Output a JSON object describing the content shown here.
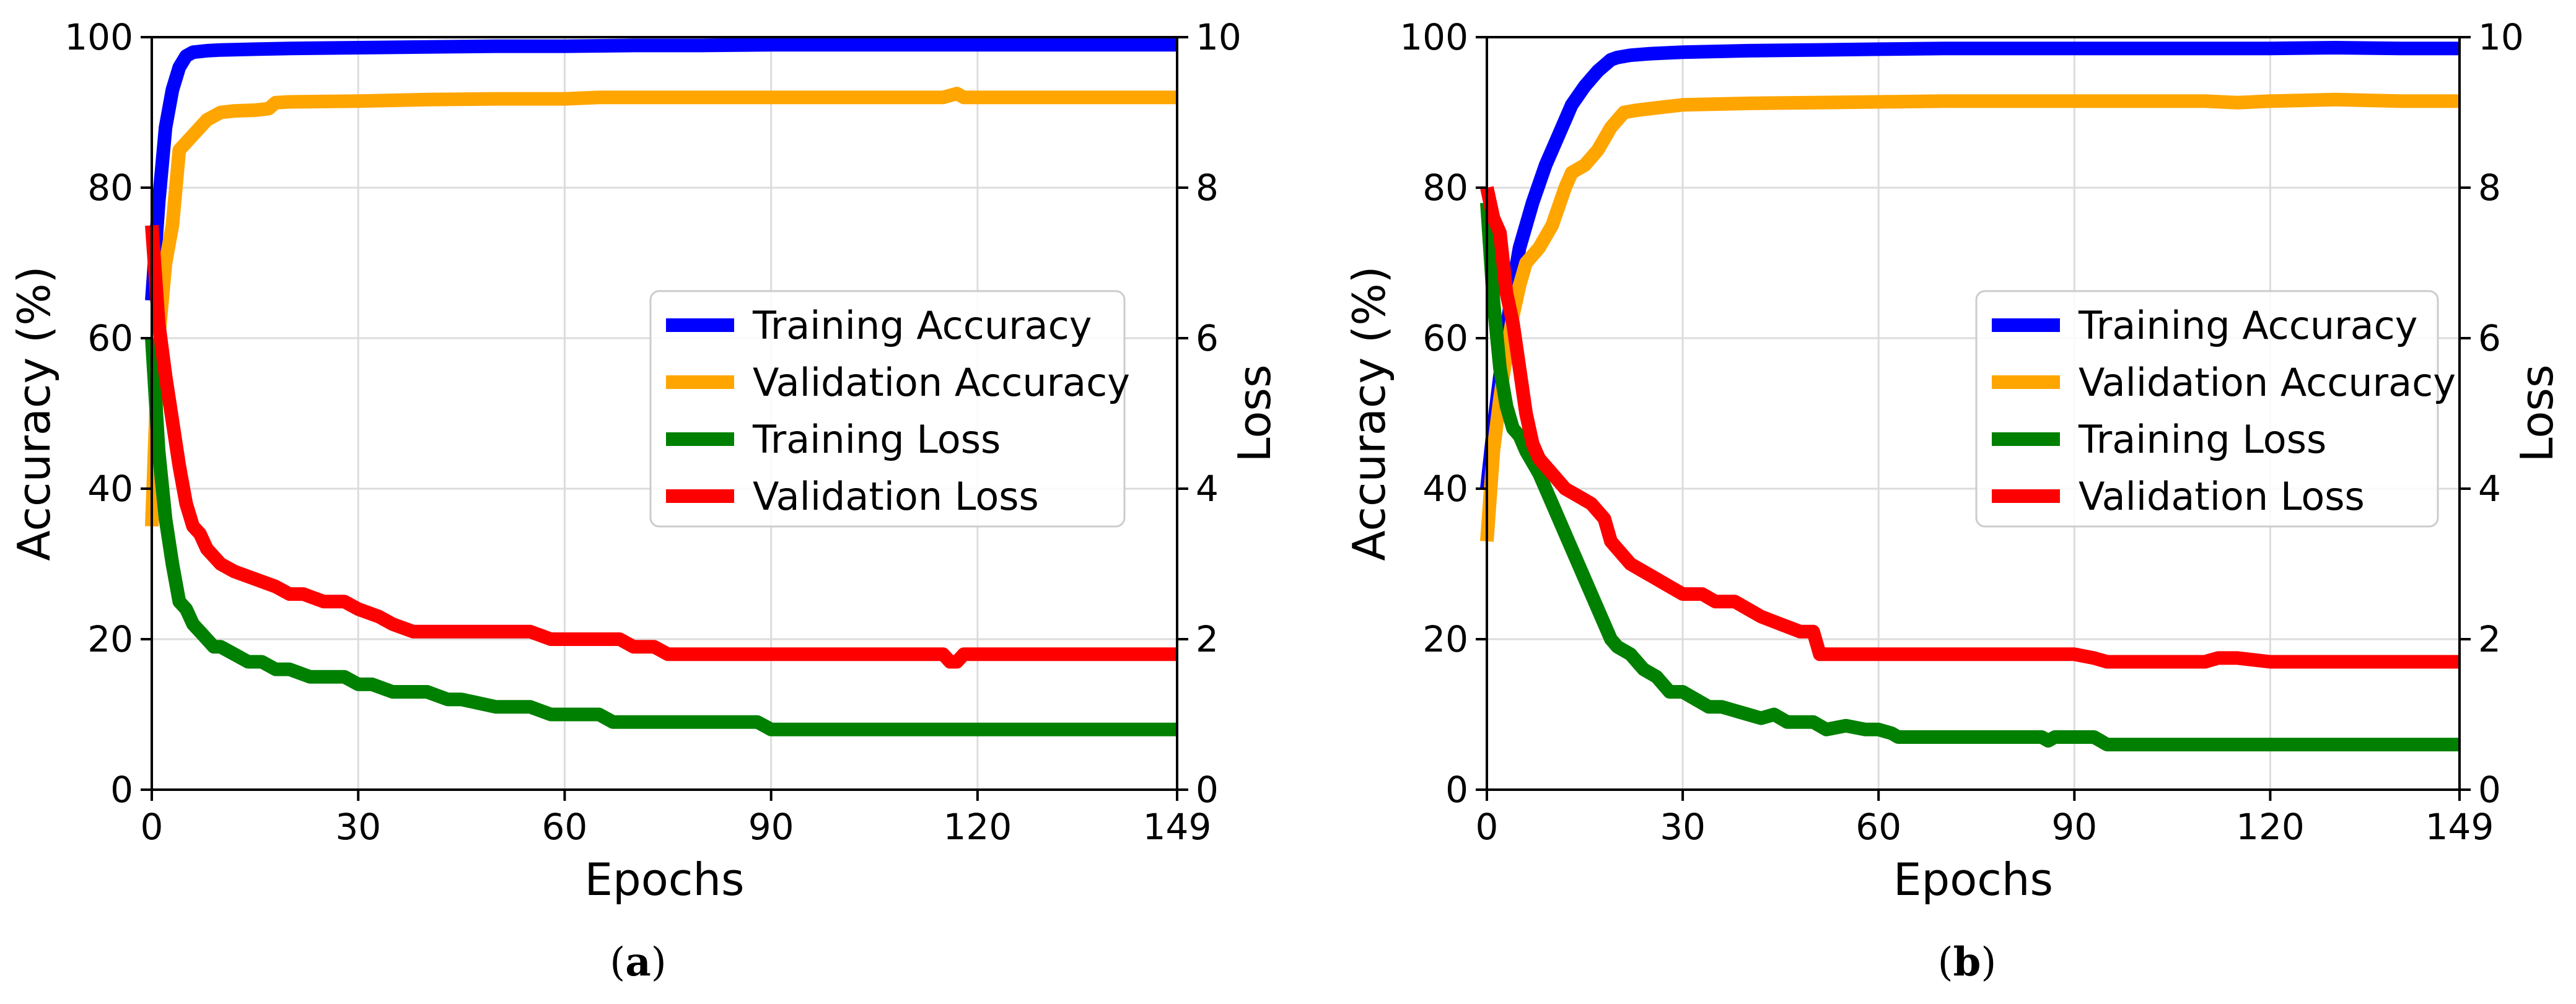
{
  "chart_data": [
    {
      "type": "line",
      "panel_label": "a",
      "xlabel": "Epochs",
      "ylabel_left": "Accuracy (%)",
      "ylabel_right": "Loss",
      "xlim": [
        0,
        149
      ],
      "ylim_left": [
        0,
        100
      ],
      "ylim_right": [
        0,
        10
      ],
      "xticks": [
        0,
        30,
        60,
        90,
        120,
        149
      ],
      "yticks_left": [
        0,
        20,
        40,
        60,
        80,
        100
      ],
      "yticks_right": [
        0,
        2,
        4,
        6,
        8,
        10
      ],
      "grid": true,
      "legend_position": "center-right",
      "series": [
        {
          "name": "Training Accuracy",
          "color": "#0000ff",
          "axis": "left",
          "x": [
            0,
            1,
            2,
            3,
            4,
            5,
            6,
            8,
            10,
            15,
            20,
            30,
            40,
            50,
            60,
            70,
            80,
            90,
            100,
            110,
            120,
            130,
            140,
            149
          ],
          "y": [
            65,
            78,
            88,
            93,
            96,
            97.5,
            98,
            98.2,
            98.3,
            98.4,
            98.5,
            98.6,
            98.7,
            98.8,
            98.8,
            98.9,
            98.9,
            99,
            99,
            99,
            99,
            99,
            99,
            99
          ]
        },
        {
          "name": "Validation Accuracy",
          "color": "#ffa500",
          "axis": "left",
          "x": [
            0,
            1,
            2,
            3,
            4,
            5,
            6,
            8,
            10,
            12,
            15,
            17,
            18,
            20,
            30,
            40,
            50,
            60,
            65,
            70,
            80,
            90,
            100,
            110,
            115,
            117,
            118,
            120,
            130,
            140,
            149
          ],
          "y": [
            35,
            60,
            70,
            75,
            85,
            86,
            87,
            89,
            90,
            90.2,
            90.3,
            90.5,
            91.3,
            91.4,
            91.5,
            91.7,
            91.8,
            91.8,
            92,
            92,
            92,
            92,
            92,
            92,
            92,
            92.5,
            92,
            92,
            92,
            92,
            92
          ]
        },
        {
          "name": "Training Loss",
          "color": "#008000",
          "axis": "right",
          "x": [
            0,
            1,
            2,
            3,
            4,
            5,
            6,
            7,
            8,
            9,
            10,
            12,
            14,
            16,
            18,
            20,
            23,
            25,
            28,
            30,
            32,
            35,
            38,
            40,
            43,
            45,
            50,
            55,
            58,
            60,
            65,
            67,
            70,
            75,
            80,
            85,
            88,
            89,
            90,
            95,
            100,
            110,
            120,
            130,
            140,
            149
          ],
          "y": [
            6.0,
            4.5,
            3.6,
            3.0,
            2.5,
            2.4,
            2.2,
            2.1,
            2.0,
            1.9,
            1.9,
            1.8,
            1.7,
            1.7,
            1.6,
            1.6,
            1.5,
            1.5,
            1.5,
            1.4,
            1.4,
            1.3,
            1.3,
            1.3,
            1.2,
            1.2,
            1.1,
            1.1,
            1.0,
            1.0,
            1.0,
            0.9,
            0.9,
            0.9,
            0.9,
            0.9,
            0.9,
            0.85,
            0.8,
            0.8,
            0.8,
            0.8,
            0.8,
            0.8,
            0.8,
            0.8
          ]
        },
        {
          "name": "Validation Loss",
          "color": "#ff0000",
          "axis": "right",
          "x": [
            0,
            1,
            2,
            3,
            4,
            5,
            6,
            7,
            8,
            10,
            12,
            15,
            18,
            20,
            22,
            25,
            28,
            30,
            33,
            35,
            38,
            40,
            45,
            50,
            55,
            58,
            60,
            65,
            68,
            70,
            73,
            75,
            80,
            90,
            100,
            110,
            115,
            116,
            117,
            118,
            120,
            130,
            140,
            149
          ],
          "y": [
            7.5,
            6.2,
            5.5,
            4.9,
            4.3,
            3.8,
            3.5,
            3.4,
            3.2,
            3.0,
            2.9,
            2.8,
            2.7,
            2.6,
            2.6,
            2.5,
            2.5,
            2.4,
            2.3,
            2.2,
            2.1,
            2.1,
            2.1,
            2.1,
            2.1,
            2.0,
            2.0,
            2.0,
            2.0,
            1.9,
            1.9,
            1.8,
            1.8,
            1.8,
            1.8,
            1.8,
            1.8,
            1.7,
            1.7,
            1.8,
            1.8,
            1.8,
            1.8,
            1.8
          ]
        }
      ]
    },
    {
      "type": "line",
      "panel_label": "b",
      "xlabel": "Epochs",
      "ylabel_left": "Accuracy (%)",
      "ylabel_right": "Loss",
      "xlim": [
        0,
        149
      ],
      "ylim_left": [
        0,
        100
      ],
      "ylim_right": [
        0,
        10
      ],
      "xticks": [
        0,
        30,
        60,
        90,
        120,
        149
      ],
      "yticks_left": [
        0,
        20,
        40,
        60,
        80,
        100
      ],
      "yticks_right": [
        0,
        2,
        4,
        6,
        8,
        10
      ],
      "grid": true,
      "legend_position": "center-right",
      "series": [
        {
          "name": "Training Accuracy",
          "color": "#0000ff",
          "axis": "left",
          "x": [
            0,
            1,
            2,
            3,
            4,
            5,
            7,
            9,
            11,
            13,
            15,
            17,
            19,
            20,
            22,
            25,
            30,
            40,
            50,
            60,
            70,
            80,
            90,
            100,
            110,
            120,
            130,
            140,
            149
          ],
          "y": [
            40,
            48,
            55,
            61,
            67,
            72,
            78,
            83,
            87,
            91,
            93.5,
            95.5,
            97,
            97.3,
            97.6,
            97.8,
            98,
            98.2,
            98.3,
            98.4,
            98.5,
            98.5,
            98.5,
            98.5,
            98.5,
            98.5,
            98.6,
            98.5,
            98.5
          ]
        },
        {
          "name": "Validation Accuracy",
          "color": "#ffa500",
          "axis": "left",
          "x": [
            0,
            1,
            2,
            3,
            4,
            5,
            6,
            8,
            10,
            12,
            13,
            15,
            17,
            19,
            21,
            23,
            25,
            30,
            40,
            50,
            60,
            70,
            80,
            90,
            100,
            110,
            115,
            120,
            130,
            140,
            149
          ],
          "y": [
            33,
            45,
            52,
            58,
            63,
            67,
            70,
            72,
            75,
            80,
            82,
            83,
            85,
            88,
            90,
            90.3,
            90.5,
            91,
            91.2,
            91.3,
            91.4,
            91.5,
            91.5,
            91.5,
            91.5,
            91.5,
            91.3,
            91.5,
            91.7,
            91.5,
            91.5
          ]
        },
        {
          "name": "Training Loss",
          "color": "#008000",
          "axis": "right",
          "x": [
            0,
            1,
            2,
            3,
            4,
            5,
            6,
            8,
            10,
            12,
            14,
            16,
            18,
            19,
            20,
            22,
            24,
            26,
            28,
            30,
            32,
            34,
            36,
            38,
            40,
            42,
            44,
            46,
            48,
            50,
            52,
            55,
            58,
            60,
            62,
            63,
            65,
            70,
            80,
            85,
            86,
            87,
            90,
            93,
            94,
            95,
            100,
            120,
            140,
            149
          ],
          "y": [
            7.8,
            6.5,
            5.6,
            5.1,
            4.8,
            4.7,
            4.5,
            4.2,
            3.8,
            3.4,
            3.0,
            2.6,
            2.2,
            2.0,
            1.9,
            1.8,
            1.6,
            1.5,
            1.3,
            1.3,
            1.2,
            1.1,
            1.1,
            1.05,
            1.0,
            0.95,
            1.0,
            0.9,
            0.9,
            0.9,
            0.8,
            0.85,
            0.8,
            0.8,
            0.75,
            0.7,
            0.7,
            0.7,
            0.7,
            0.7,
            0.65,
            0.7,
            0.7,
            0.7,
            0.65,
            0.6,
            0.6,
            0.6,
            0.6,
            0.6
          ]
        },
        {
          "name": "Validation Loss",
          "color": "#ff0000",
          "axis": "right",
          "x": [
            0,
            1,
            2,
            3,
            4,
            5,
            6,
            7,
            8,
            10,
            12,
            14,
            16,
            18,
            19,
            20,
            22,
            24,
            26,
            28,
            30,
            33,
            35,
            38,
            40,
            42,
            45,
            48,
            50,
            51,
            52,
            55,
            60,
            70,
            80,
            90,
            93,
            95,
            100,
            110,
            112,
            115,
            120,
            130,
            140,
            149
          ],
          "y": [
            8.0,
            7.6,
            7.4,
            6.6,
            6.2,
            5.6,
            5.0,
            4.6,
            4.4,
            4.2,
            4.0,
            3.9,
            3.8,
            3.6,
            3.3,
            3.2,
            3.0,
            2.9,
            2.8,
            2.7,
            2.6,
            2.6,
            2.5,
            2.5,
            2.4,
            2.3,
            2.2,
            2.1,
            2.1,
            1.8,
            1.8,
            1.8,
            1.8,
            1.8,
            1.8,
            1.8,
            1.75,
            1.7,
            1.7,
            1.7,
            1.75,
            1.75,
            1.7,
            1.7,
            1.7,
            1.7
          ]
        }
      ]
    }
  ],
  "captions": [
    "(a)",
    "(b)"
  ]
}
